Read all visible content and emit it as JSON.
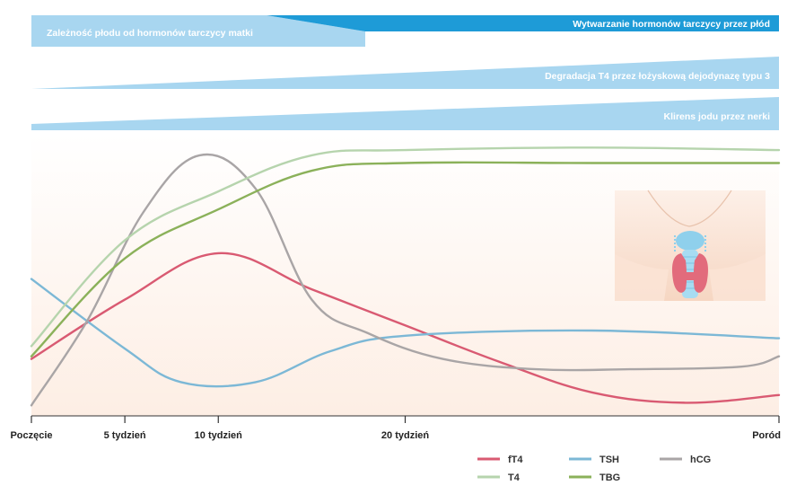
{
  "chart_data": {
    "type": "line",
    "title": "",
    "xlabel": "",
    "ylabel": "",
    "x_categories": [
      "Poczęcie",
      "5 tydzień",
      "10 tydzień",
      "20 tydzień",
      "Poród"
    ],
    "x_weeks": [
      0,
      5,
      10,
      20,
      40
    ],
    "xlim": [
      0,
      40
    ],
    "ylim": [
      0,
      100
    ],
    "series": [
      {
        "name": "fT4",
        "color": "#d95a72",
        "points": [
          [
            0,
            20
          ],
          [
            5,
            43
          ],
          [
            10,
            61
          ],
          [
            15,
            47
          ],
          [
            20,
            33
          ],
          [
            25,
            19
          ],
          [
            30,
            7
          ],
          [
            35,
            3
          ],
          [
            40,
            6
          ]
        ]
      },
      {
        "name": "TSH",
        "color": "#7cb8d6",
        "points": [
          [
            0,
            51
          ],
          [
            5,
            24
          ],
          [
            8,
            11
          ],
          [
            12,
            11
          ],
          [
            16,
            23
          ],
          [
            20,
            29
          ],
          [
            30,
            31
          ],
          [
            40,
            28
          ]
        ]
      },
      {
        "name": "hCG",
        "color": "#a9a5a6",
        "points": [
          [
            0,
            2
          ],
          [
            3,
            35
          ],
          [
            6,
            77
          ],
          [
            9,
            99
          ],
          [
            12,
            86
          ],
          [
            15,
            43
          ],
          [
            18,
            30
          ],
          [
            22,
            20
          ],
          [
            27,
            16
          ],
          [
            32,
            16
          ],
          [
            38,
            17
          ],
          [
            40,
            21
          ]
        ]
      },
      {
        "name": "T4",
        "color": "#b6d4ad",
        "points": [
          [
            0,
            25
          ],
          [
            5,
            66
          ],
          [
            10,
            85
          ],
          [
            15,
            99
          ],
          [
            20,
            101
          ],
          [
            30,
            102
          ],
          [
            40,
            101
          ]
        ]
      },
      {
        "name": "TBG",
        "color": "#8bb15a",
        "points": [
          [
            0,
            21
          ],
          [
            5,
            59
          ],
          [
            10,
            78
          ],
          [
            15,
            93
          ],
          [
            20,
            96
          ],
          [
            30,
            96
          ],
          [
            40,
            96
          ]
        ]
      }
    ],
    "bands": [
      {
        "label": "Zależność płodu od hormonów tarczycy matki",
        "shape": "decreasing"
      },
      {
        "label": "Wytwarzanie hormonów tarczycy przez płód",
        "shape": "increasing"
      },
      {
        "label": "Degradacja T4 przez łożyskową dejodynazę typu 3",
        "shape": "increasing"
      },
      {
        "label": "Klirens jodu przez nerki",
        "shape": "increasing"
      }
    ],
    "legend_position": "bottom-right",
    "grid": false
  },
  "colors": {
    "band_light": "#a8d6f0",
    "band_dark": "#1e9bd7",
    "background_warm": "#fdeee4",
    "axis": "#333333"
  },
  "illustration": {
    "icon": "thyroid-neck-illustration"
  }
}
